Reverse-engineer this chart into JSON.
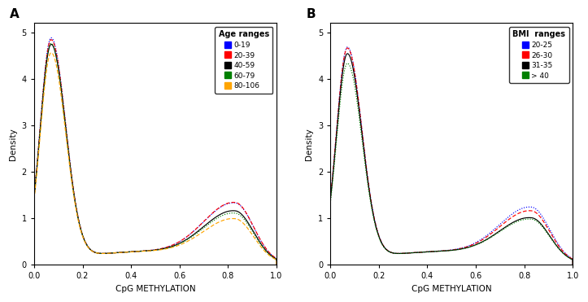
{
  "panel_A": {
    "label": "A",
    "legend_title": "Age ranges",
    "series": [
      {
        "label": "0-19",
        "color": "blue",
        "linestyle": "dotted",
        "peak1": 4.77,
        "peak2": 1.22,
        "trough": 0.3
      },
      {
        "label": "20-39",
        "color": "red",
        "linestyle": "dashed",
        "peak1": 4.73,
        "peak2": 1.23,
        "trough": 0.3
      },
      {
        "label": "40-59",
        "color": "black",
        "linestyle": "solid",
        "peak1": 4.63,
        "peak2": 1.05,
        "trough": 0.3
      },
      {
        "label": "60-79",
        "color": "green",
        "linestyle": "dotted",
        "peak1": 4.65,
        "peak2": 1.0,
        "trough": 0.3
      },
      {
        "label": "80-106",
        "color": "orange",
        "linestyle": "dashed",
        "peak1": 4.45,
        "peak2": 0.88,
        "trough": 0.3
      }
    ]
  },
  "panel_B": {
    "label": "B",
    "legend_title": "BMI  ranges",
    "series": [
      {
        "label": "20-25",
        "color": "blue",
        "linestyle": "dotted",
        "peak1": 4.57,
        "peak2": 1.13,
        "trough": 0.3
      },
      {
        "label": "26-30",
        "color": "red",
        "linestyle": "dashed",
        "peak1": 4.55,
        "peak2": 1.05,
        "trough": 0.3
      },
      {
        "label": "31-35",
        "color": "black",
        "linestyle": "solid",
        "peak1": 4.43,
        "peak2": 0.9,
        "trough": 0.3
      },
      {
        "label": "> 40",
        "color": "green",
        "linestyle": "dotted",
        "peak1": 4.22,
        "peak2": 0.87,
        "trough": 0.3
      }
    ]
  },
  "xlabel": "CpG METHYLATION",
  "ylabel": "Density",
  "xlim": [
    0.0,
    1.0
  ],
  "ylim": [
    0.0,
    5.2
  ],
  "yticks": [
    0,
    1,
    2,
    3,
    4,
    5
  ],
  "xticks": [
    0.0,
    0.2,
    0.4,
    0.6,
    0.8,
    1.0
  ]
}
